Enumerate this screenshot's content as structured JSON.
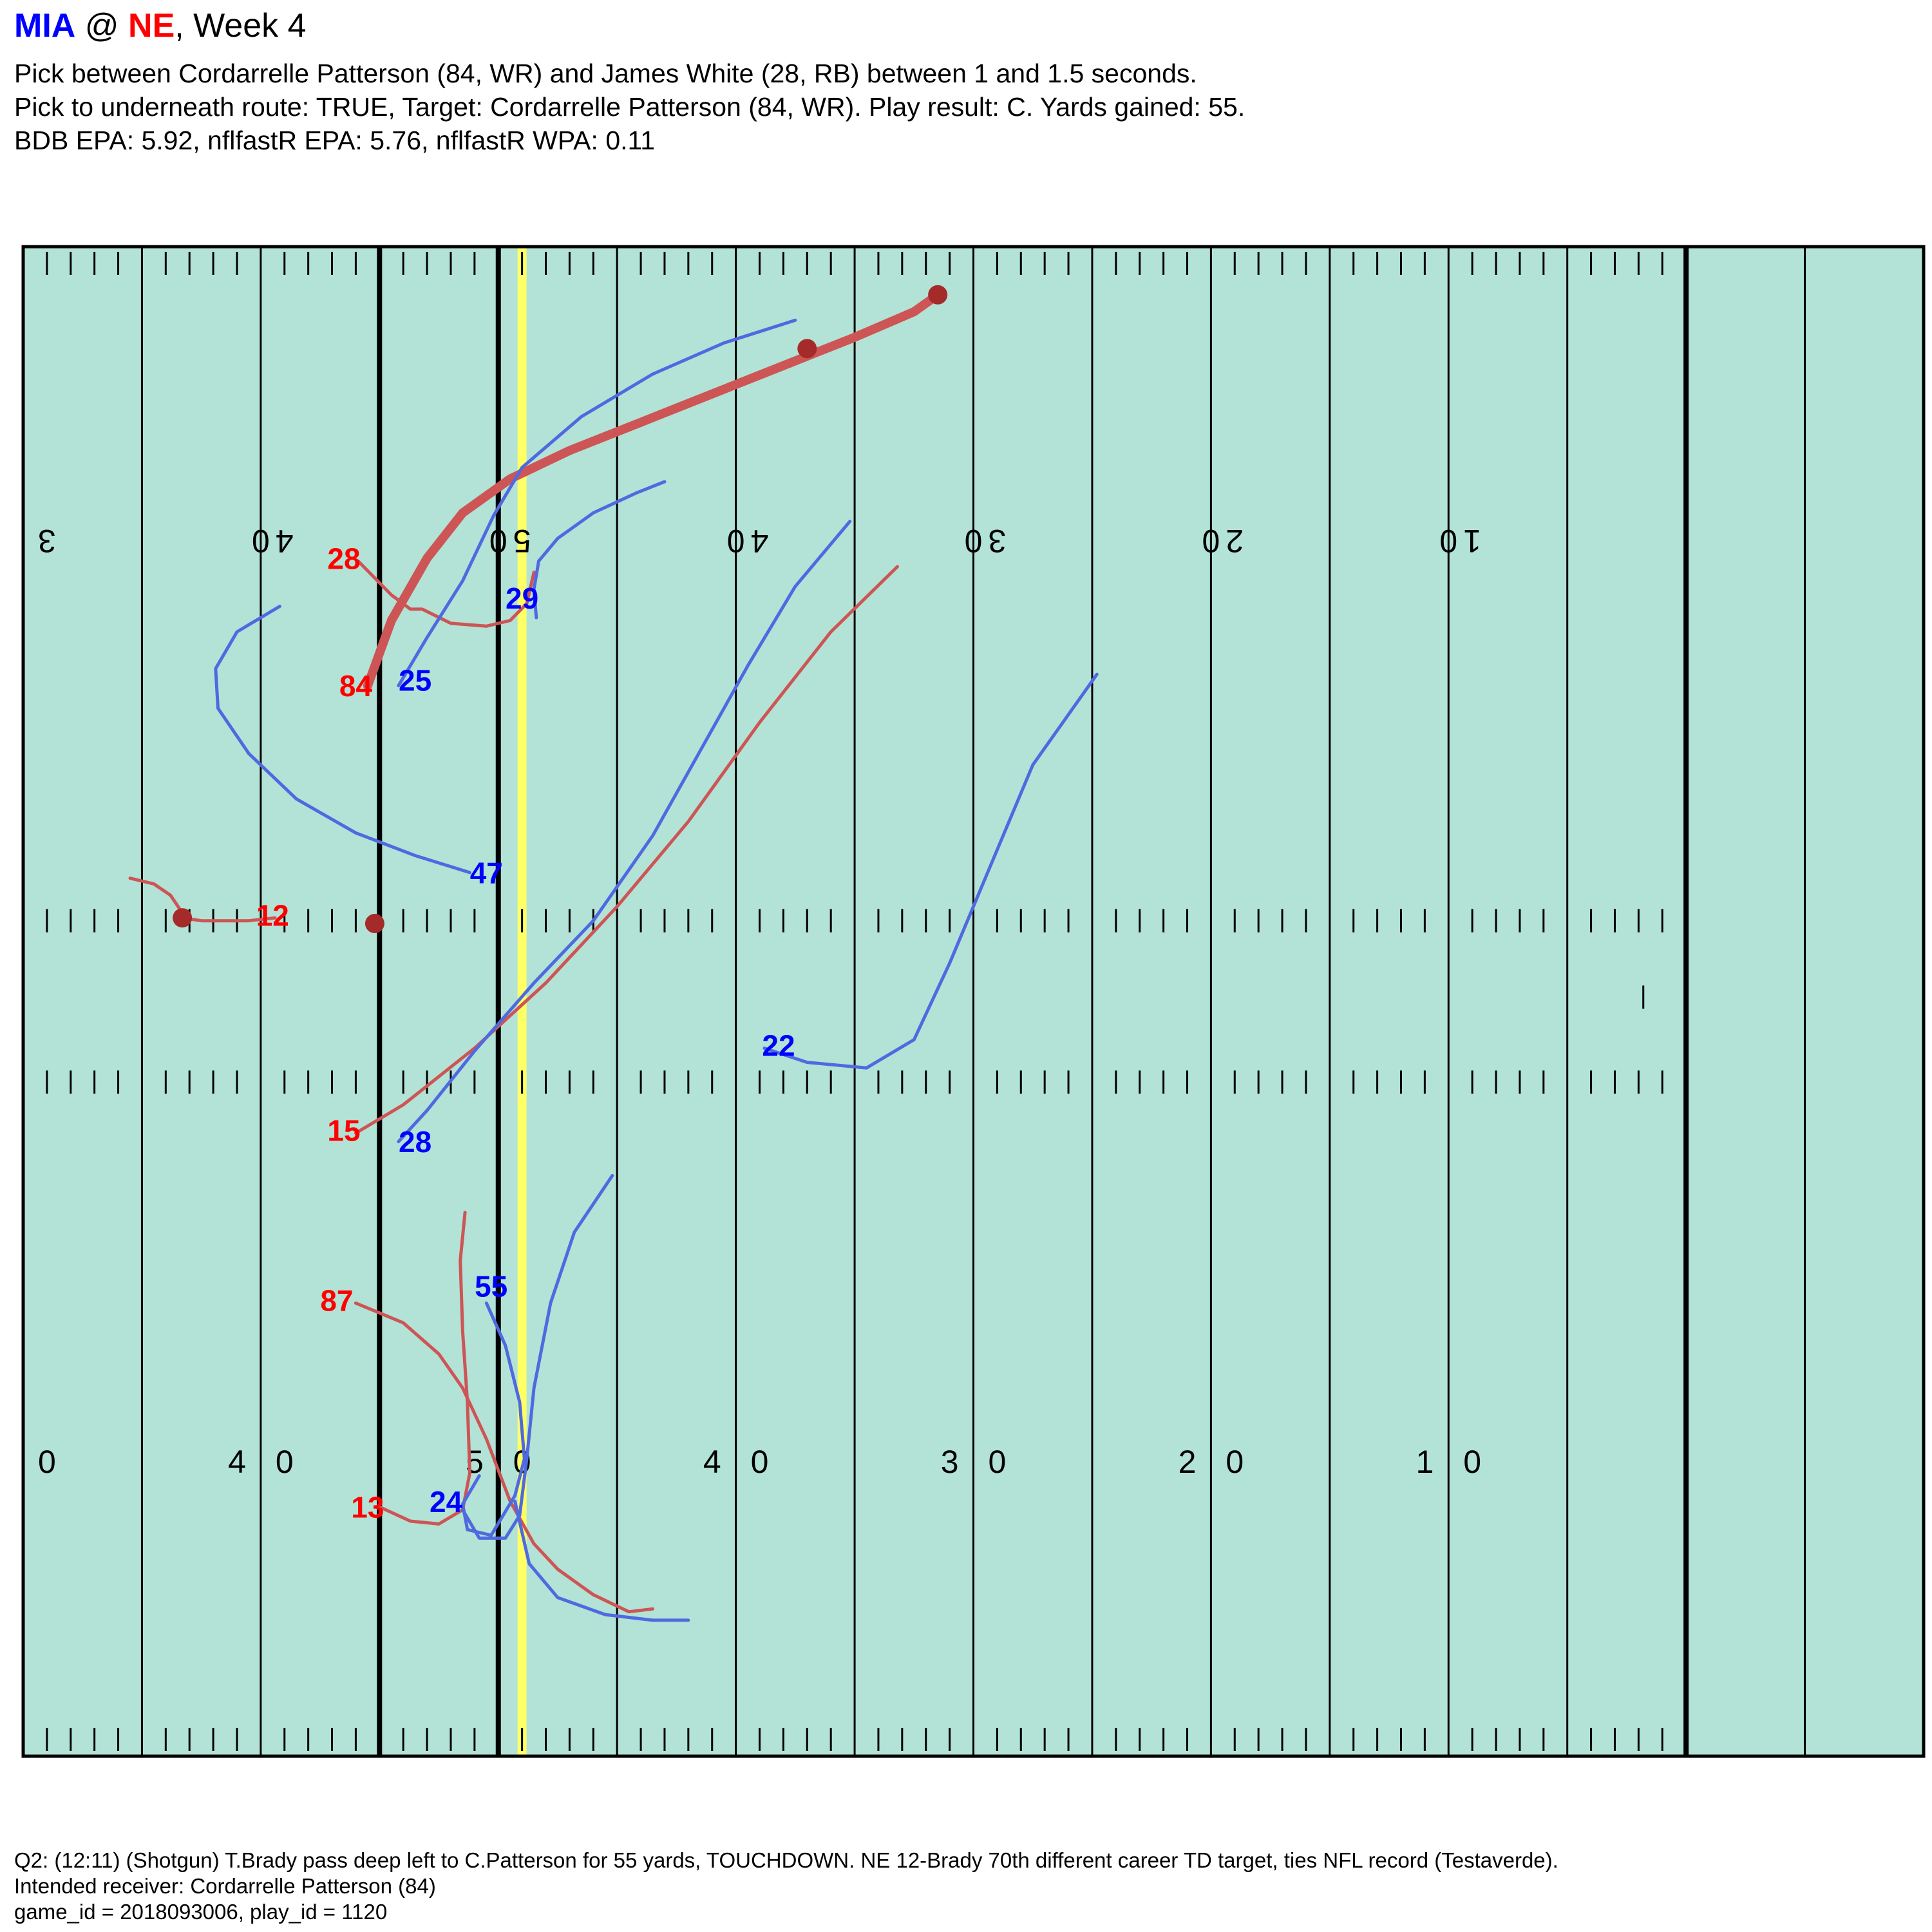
{
  "header": {
    "away_team": "MIA",
    "at": " @ ",
    "home_team": "NE",
    "week_text": ", Week 4",
    "subtitle_lines": [
      "Pick between Cordarrelle Patterson (84, WR) and James White (28, RB) between 1 and 1.5 seconds.",
      "Pick to underneath route: TRUE, Target: Cordarrelle Patterson (84, WR). Play result: C. Yards gained: 55.",
      "BDB EPA: 5.92, nflfastR EPA: 5.76, nflfastR WPA: 0.11"
    ]
  },
  "footer": {
    "lines": [
      "Q2: (12:11) (Shotgun) T.Brady pass deep left to C.Patterson for 55 yards, TOUCHDOWN. NE 12-Brady 70th different career TD target, ties NFL record (Testaverde).",
      "Intended receiver: Cordarrelle Patterson (84)",
      "game_id = 2018093006, play_id = 1120"
    ]
  },
  "colors": {
    "field": "#b3e2d6",
    "line": "#000000",
    "line_of_scrimmage": "#ffff66",
    "offense": "#ff0000",
    "offense_track": "#cd5555",
    "defense": "#0000ff",
    "defense_track": "#4f6ae0",
    "ball": "#a52a2a"
  },
  "chart_data": {
    "type": "scatter",
    "description_units": "yards (x: field position along the long axis, y: distance from sideline)",
    "xlim": [
      0,
      80
    ],
    "ylim": [
      0,
      53.3
    ],
    "line_of_scrimmage": 21,
    "yard_number_labels": {
      "top": [
        {
          "x": 1,
          "text": "3"
        },
        {
          "x": 10,
          "text": "0"
        },
        {
          "x": 11,
          "text": "4"
        },
        {
          "x": 20,
          "text": "0"
        },
        {
          "x": 21,
          "text": "5"
        },
        {
          "x": 30,
          "text": "0"
        },
        {
          "x": 31,
          "text": "4"
        },
        {
          "x": 40,
          "text": "0"
        },
        {
          "x": 41,
          "text": "3"
        },
        {
          "x": 50,
          "text": "0"
        },
        {
          "x": 51,
          "text": "2"
        },
        {
          "x": 60,
          "text": "0"
        },
        {
          "x": 61,
          "text": "1"
        }
      ],
      "bottom": [
        {
          "x": 1,
          "text": "0"
        },
        {
          "x": 9,
          "text": "4"
        },
        {
          "x": 11,
          "text": "0"
        },
        {
          "x": 19,
          "text": "5"
        },
        {
          "x": 21,
          "text": "0"
        },
        {
          "x": 29,
          "text": "4"
        },
        {
          "x": 31,
          "text": "0"
        },
        {
          "x": 39,
          "text": "3"
        },
        {
          "x": 41,
          "text": "0"
        },
        {
          "x": 49,
          "text": "2"
        },
        {
          "x": 51,
          "text": "0"
        },
        {
          "x": 59,
          "text": "1"
        },
        {
          "x": 61,
          "text": "0"
        }
      ]
    },
    "series": [
      {
        "name": "84",
        "team": "offense",
        "target": true,
        "label_at": [
          14.0,
          37.7
        ],
        "path": [
          [
            14.5,
            37.8
          ],
          [
            15.5,
            40.1
          ],
          [
            17,
            42.3
          ],
          [
            18.5,
            43.9
          ],
          [
            20.5,
            45.1
          ],
          [
            23,
            46.1
          ],
          [
            26,
            47.1
          ],
          [
            29,
            48.1
          ],
          [
            32,
            49.1
          ],
          [
            35,
            50.1
          ],
          [
            37.5,
            51.0
          ],
          [
            38.5,
            51.6
          ]
        ],
        "markers": [
          [
            33,
            49.7
          ],
          [
            38.5,
            51.6
          ]
        ]
      },
      {
        "name": "28",
        "team": "offense",
        "label_at": [
          13.5,
          42.2
        ],
        "path": [
          [
            14.1,
            42.2
          ],
          [
            15.5,
            41.0
          ],
          [
            16.3,
            40.5
          ],
          [
            16.8,
            40.5
          ],
          [
            18,
            40.0
          ],
          [
            19.5,
            39.9
          ],
          [
            20.5,
            40.1
          ],
          [
            21.2,
            40.7
          ],
          [
            21.5,
            41.8
          ]
        ]
      },
      {
        "name": "12",
        "team": "offense",
        "label_at": [
          10.5,
          29.6
        ],
        "path": [
          [
            4.5,
            31.0
          ],
          [
            5.5,
            30.8
          ],
          [
            6.2,
            30.4
          ],
          [
            6.6,
            29.9
          ],
          [
            6.7,
            29.6
          ],
          [
            7.5,
            29.5
          ],
          [
            9.5,
            29.5
          ],
          [
            10.6,
            29.6
          ]
        ],
        "markers": [
          [
            6.7,
            29.6
          ],
          [
            14.8,
            29.4
          ]
        ]
      },
      {
        "name": "15",
        "team": "offense",
        "label_at": [
          13.5,
          22.0
        ],
        "path": [
          [
            14.0,
            22.0
          ],
          [
            16,
            23.0
          ],
          [
            19,
            25.0
          ],
          [
            22,
            27.3
          ],
          [
            25,
            30.0
          ],
          [
            28,
            33.0
          ],
          [
            31,
            36.5
          ],
          [
            34,
            39.7
          ],
          [
            36.8,
            42.0
          ]
        ]
      },
      {
        "name": "87",
        "team": "offense",
        "label_at": [
          13.2,
          16.0
        ],
        "path": [
          [
            14,
            16.0
          ],
          [
            16,
            15.3
          ],
          [
            17.5,
            14.2
          ],
          [
            18.5,
            13.0
          ],
          [
            19.5,
            11.2
          ],
          [
            20.5,
            9.0
          ],
          [
            21.5,
            7.5
          ],
          [
            22.5,
            6.6
          ],
          [
            24,
            5.7
          ],
          [
            25.5,
            5.1
          ],
          [
            26.5,
            5.2
          ]
        ]
      },
      {
        "name": "13",
        "team": "offense",
        "label_at": [
          14.5,
          8.7
        ],
        "path": [
          [
            15,
            8.8
          ],
          [
            16.3,
            8.3
          ],
          [
            17.5,
            8.2
          ],
          [
            18.5,
            8.7
          ],
          [
            18.8,
            10.0
          ],
          [
            18.7,
            12.5
          ],
          [
            18.5,
            15.0
          ],
          [
            18.4,
            17.5
          ],
          [
            18.6,
            19.2
          ]
        ]
      },
      {
        "name": "25",
        "team": "defense",
        "label_at": [
          16.5,
          37.9
        ],
        "path": [
          [
            15.8,
            37.8
          ],
          [
            17,
            39.5
          ],
          [
            18.5,
            41.5
          ],
          [
            19.8,
            43.8
          ],
          [
            21,
            45.5
          ],
          [
            23.5,
            47.3
          ],
          [
            26.5,
            48.8
          ],
          [
            29.5,
            49.9
          ],
          [
            32.5,
            50.7
          ]
        ]
      },
      {
        "name": "29",
        "team": "defense",
        "label_at": [
          21.0,
          40.8
        ],
        "path": [
          [
            21.6,
            40.2
          ],
          [
            21.5,
            41.2
          ],
          [
            21.7,
            42.2
          ],
          [
            22.5,
            43.0
          ],
          [
            24,
            43.9
          ],
          [
            25.8,
            44.6
          ],
          [
            27,
            45.0
          ]
        ]
      },
      {
        "name": "47",
        "team": "defense",
        "label_at": [
          19.5,
          31.1
        ],
        "path": [
          [
            18.8,
            31.2
          ],
          [
            16.5,
            31.8
          ],
          [
            14,
            32.6
          ],
          [
            11.5,
            33.8
          ],
          [
            9.5,
            35.4
          ],
          [
            8.2,
            37.0
          ],
          [
            8.1,
            38.4
          ],
          [
            9,
            39.7
          ],
          [
            10.8,
            40.6
          ]
        ]
      },
      {
        "name": "28",
        "team": "defense",
        "label_at": [
          16.5,
          21.6
        ],
        "path": [
          [
            15.8,
            21.7
          ],
          [
            17,
            22.8
          ],
          [
            19,
            24.9
          ],
          [
            21.5,
            27.3
          ],
          [
            24,
            29.5
          ],
          [
            26.5,
            32.5
          ],
          [
            28.5,
            35.5
          ],
          [
            30.5,
            38.5
          ],
          [
            32.5,
            41.3
          ],
          [
            34.8,
            43.6
          ]
        ]
      },
      {
        "name": "22",
        "team": "defense",
        "label_at": [
          31.8,
          25.0
        ],
        "path": [
          [
            31.2,
            25.0
          ],
          [
            33,
            24.5
          ],
          [
            35.5,
            24.3
          ],
          [
            37.5,
            25.3
          ],
          [
            39,
            28.0
          ],
          [
            40.5,
            31.0
          ],
          [
            42.5,
            35.0
          ],
          [
            45.2,
            38.2
          ]
        ]
      },
      {
        "name": "55",
        "team": "defense",
        "label_at": [
          19.7,
          16.5
        ],
        "path": [
          [
            19.5,
            16.0
          ],
          [
            20.3,
            14.5
          ],
          [
            20.9,
            12.5
          ],
          [
            21.1,
            10.5
          ],
          [
            20.7,
            9.2
          ],
          [
            19.7,
            7.8
          ],
          [
            18.7,
            8.0
          ],
          [
            18.5,
            8.9
          ],
          [
            19.2,
            9.9
          ]
        ]
      },
      {
        "name": "24",
        "team": "defense",
        "label_at": [
          17.8,
          8.9
        ],
        "path": [
          [
            18.5,
            8.7
          ],
          [
            19.2,
            7.7
          ],
          [
            20.3,
            7.7
          ],
          [
            20.9,
            8.5
          ],
          [
            21.2,
            10.5
          ],
          [
            21.5,
            13.0
          ],
          [
            22.2,
            16.0
          ],
          [
            23.2,
            18.5
          ],
          [
            24.8,
            20.5
          ]
        ]
      },
      {
        "name": "",
        "team": "defense",
        "path": [
          [
            20.7,
            9.0
          ],
          [
            21.3,
            6.8
          ],
          [
            22.5,
            5.6
          ],
          [
            24.5,
            5.0
          ],
          [
            26.5,
            4.8
          ],
          [
            28.0,
            4.8
          ]
        ]
      }
    ]
  }
}
